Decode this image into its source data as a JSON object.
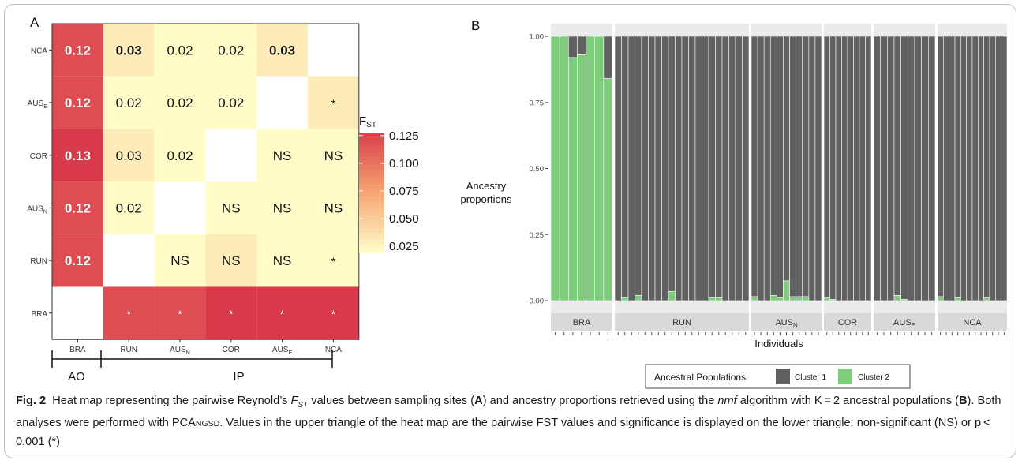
{
  "chart_data": [
    {
      "panel_label": "A",
      "type": "heatmap",
      "rows": [
        "NCA",
        "AUS_E",
        "COR",
        "AUS_N",
        "RUN",
        "BRA"
      ],
      "columns": [
        "BRA",
        "RUN",
        "AUS_N",
        "COR",
        "AUS_E",
        "NCA"
      ],
      "row_labels": [
        {
          "main": "NCA",
          "sub": ""
        },
        {
          "main": "AUS",
          "sub": "E"
        },
        {
          "main": "COR",
          "sub": ""
        },
        {
          "main": "AUS",
          "sub": "N"
        },
        {
          "main": "RUN",
          "sub": ""
        },
        {
          "main": "BRA",
          "sub": ""
        }
      ],
      "column_labels": [
        {
          "main": "BRA",
          "sub": ""
        },
        {
          "main": "RUN",
          "sub": ""
        },
        {
          "main": "AUS",
          "sub": "N"
        },
        {
          "main": "COR",
          "sub": ""
        },
        {
          "main": "AUS",
          "sub": "E"
        },
        {
          "main": "NCA",
          "sub": ""
        }
      ],
      "cells": [
        [
          {
            "v": 0.12,
            "t": "0.12"
          },
          {
            "v": 0.03,
            "t": "0.03",
            "bold": true
          },
          {
            "v": 0.02,
            "t": "0.02"
          },
          {
            "v": 0.02,
            "t": "0.02"
          },
          {
            "v": 0.03,
            "t": "0.03",
            "bold": true
          },
          null
        ],
        [
          {
            "v": 0.12,
            "t": "0.12"
          },
          {
            "v": 0.02,
            "t": "0.02"
          },
          {
            "v": 0.02,
            "t": "0.02"
          },
          {
            "v": 0.02,
            "t": "0.02"
          },
          null,
          {
            "v": 0.03,
            "t": "*"
          }
        ],
        [
          {
            "v": 0.13,
            "t": "0.13"
          },
          {
            "v": 0.03,
            "t": "0.03"
          },
          {
            "v": 0.02,
            "t": "0.02"
          },
          null,
          {
            "v": 0.02,
            "t": "NS"
          },
          {
            "v": 0.02,
            "t": "NS"
          }
        ],
        [
          {
            "v": 0.12,
            "t": "0.12"
          },
          {
            "v": 0.02,
            "t": "0.02"
          },
          null,
          {
            "v": 0.02,
            "t": "NS"
          },
          {
            "v": 0.02,
            "t": "NS"
          },
          {
            "v": 0.02,
            "t": "NS"
          }
        ],
        [
          {
            "v": 0.12,
            "t": "0.12"
          },
          null,
          {
            "v": 0.02,
            "t": "NS"
          },
          {
            "v": 0.03,
            "t": "NS"
          },
          {
            "v": 0.02,
            "t": "NS"
          },
          {
            "v": 0.02,
            "t": "*"
          }
        ],
        [
          null,
          {
            "v": 0.12,
            "t": "*"
          },
          {
            "v": 0.12,
            "t": "*"
          },
          {
            "v": 0.13,
            "t": "*"
          },
          {
            "v": 0.13,
            "t": "*"
          },
          {
            "v": 0.13,
            "t": "*"
          }
        ]
      ],
      "legend": {
        "title_main": "F",
        "title_sub": "ST",
        "ticks": [
          "0.125",
          "0.100",
          "0.075",
          "0.050",
          "0.025"
        ],
        "tick_values": [
          0.125,
          0.1,
          0.075,
          0.05,
          0.025
        ],
        "range": [
          0.02,
          0.13
        ]
      },
      "groups": [
        {
          "label": "AO",
          "span": [
            0,
            0
          ]
        },
        {
          "label": "IP",
          "span": [
            1,
            5
          ]
        }
      ],
      "colors": {
        "low": "#fffcc8",
        "mid": "#f5a370",
        "high": "#d93a4a"
      }
    },
    {
      "panel_label": "B",
      "type": "bar",
      "stacked": true,
      "ylabel": "Ancestry proportions",
      "xlabel": "Individuals",
      "yticks": [
        "0.00",
        "0.25",
        "0.50",
        "0.75",
        "1.00"
      ],
      "ytick_values": [
        0,
        0.25,
        0.5,
        0.75,
        1.0
      ],
      "ylim": [
        0,
        1
      ],
      "series": [
        {
          "name": "Cluster 1",
          "color": "#616161"
        },
        {
          "name": "Cluster 2",
          "color": "#7dcd7d"
        }
      ],
      "legend": {
        "title": "Ancestral Populations",
        "position": "bottom"
      },
      "facets": [
        {
          "label": "BRA",
          "sub": "",
          "cluster2": [
            1.0,
            1.0,
            0.92,
            0.93,
            1.0,
            1.0,
            0.84
          ]
        },
        {
          "label": "RUN",
          "sub": "",
          "cluster2": [
            0.0,
            0.01,
            0.0,
            0.02,
            0.0,
            0.0,
            0.0,
            0.0,
            0.035,
            0.0,
            0.0,
            0.0,
            0.0,
            0.0,
            0.01,
            0.01,
            0.0,
            0.0,
            0.0,
            0.0
          ]
        },
        {
          "label": "AUS",
          "sub": "N",
          "cluster2": [
            0.015,
            0.0,
            0.0,
            0.02,
            0.01,
            0.075,
            0.015,
            0.015,
            0.015,
            0.0,
            0.0
          ]
        },
        {
          "label": "COR",
          "sub": "",
          "cluster2": [
            0.01,
            0.005,
            0.0,
            0.0,
            0.0,
            0.0,
            0.0,
            0.0
          ]
        },
        {
          "label": "AUS",
          "sub": "E",
          "cluster2": [
            0.0,
            0.0,
            0.0,
            0.02,
            0.005,
            0.0,
            0.0,
            0.0,
            0.0
          ]
        },
        {
          "label": "NCA",
          "sub": "",
          "cluster2": [
            0.015,
            0.0,
            0.0,
            0.01,
            0.0,
            0.0,
            0.0,
            0.0,
            0.01,
            0.0,
            0.0,
            0.0
          ]
        }
      ]
    }
  ],
  "caption": {
    "fig_label": "Fig. 2",
    "p1": "Heat map representing the pairwise Reynold’s ",
    "fst_main": "F",
    "fst_sub": "ST",
    "p2": " values between sampling sites (",
    "bold_a": "A",
    "p3": ") and ancestry proportions retrieved using the ",
    "nmf": "nmf",
    "p4": " algorithm with K = 2 ancestral populations (",
    "bold_b": "B",
    "p5": "). Both analyses were performed with PCA",
    "ngsd": "NGSD",
    "p6": ". Values in the upper triangle of the heat map are the pairwise FST values and significance is displayed on the lower triangle: non-significant (NS) or p < 0.001 (*)"
  }
}
